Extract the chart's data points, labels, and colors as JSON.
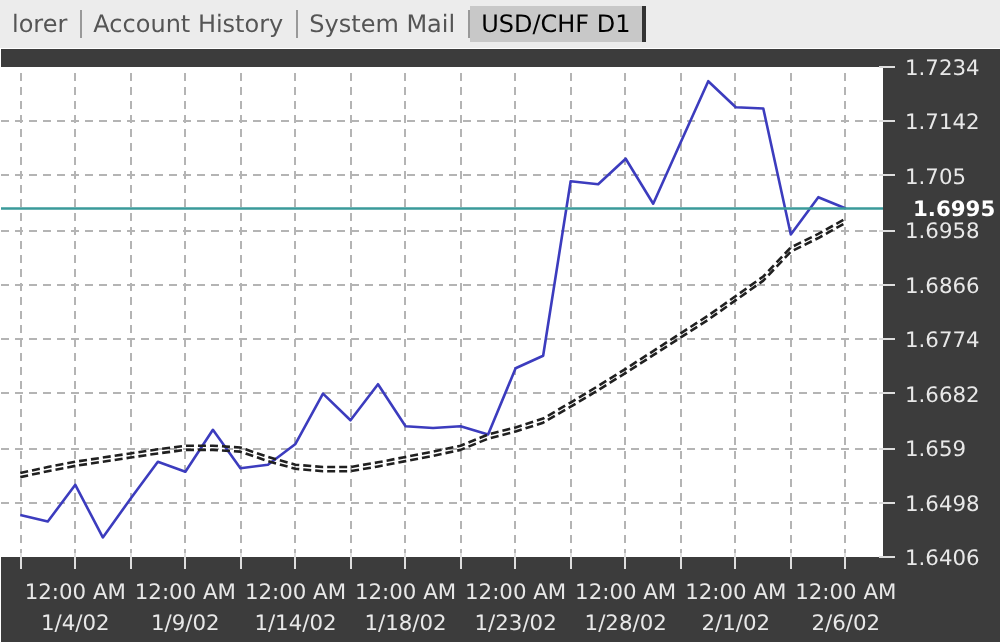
{
  "chart_data": {
    "type": "line",
    "title": "USD/CHF D1",
    "annotations": [
      "lorer",
      "Account History",
      "System Mail"
    ],
    "categories": [
      null,
      null,
      "12:00 AM\n1/4/02",
      null,
      null,
      null,
      "12:00 AM\n1/9/02",
      null,
      null,
      null,
      "12:00 AM\n1/14/02",
      null,
      null,
      null,
      "12:00 AM\n1/18/02",
      null,
      null,
      null,
      "12:00 AM\n1/23/02",
      null,
      null,
      null,
      "12:00 AM\n1/28/02",
      null,
      null,
      null,
      "12:00 AM\n2/1/02",
      null,
      null,
      null,
      "12:00 AM\n2/6/02"
    ],
    "ylim": [
      1.6406,
      1.7234
    ],
    "yticks": [
      1.6406,
      1.6498,
      1.659,
      1.6682,
      1.6774,
      1.6866,
      1.6958,
      1.705,
      1.7142,
      1.7234
    ],
    "grid": true,
    "ref_lines": [
      {
        "axis": "y",
        "value": 1.6995,
        "label": "1.6995",
        "color": "#3a9a9a"
      }
    ],
    "series": [
      {
        "color": "#3c3cbe",
        "line_style": "solid",
        "values": [
          1.6477,
          1.6466,
          1.6528,
          1.6439,
          1.6504,
          1.6567,
          1.655,
          1.6621,
          1.6556,
          1.6562,
          1.6597,
          1.6682,
          1.6637,
          1.6698,
          1.6627,
          1.6624,
          1.6627,
          1.6613,
          1.6725,
          1.6746,
          1.7041,
          1.7036,
          1.7079,
          1.7003,
          1.7107,
          1.721,
          1.7166,
          1.7164,
          1.6951,
          1.7014,
          1.6995
        ]
      },
      {
        "color": "#202020",
        "line_style": "dashed",
        "values": [
          1.6548,
          1.6558,
          1.6567,
          1.6574,
          1.6581,
          1.6588,
          1.6594,
          1.6594,
          1.6591,
          1.6575,
          1.6562,
          1.6558,
          1.6558,
          1.6566,
          1.6575,
          1.6584,
          1.6594,
          1.6613,
          1.6625,
          1.664,
          1.6667,
          1.6695,
          1.6724,
          1.6754,
          1.6784,
          1.6814,
          1.6847,
          1.688,
          1.6929,
          1.6952,
          1.6978
        ]
      },
      {
        "color": "#202020",
        "line_style": "dashed",
        "values": [
          1.6541,
          1.6551,
          1.656,
          1.6567,
          1.6574,
          1.6581,
          1.6587,
          1.6587,
          1.6584,
          1.6568,
          1.6555,
          1.6551,
          1.6551,
          1.6559,
          1.6568,
          1.6577,
          1.6587,
          1.6606,
          1.6618,
          1.6633,
          1.666,
          1.6688,
          1.6717,
          1.6747,
          1.6777,
          1.6807,
          1.684,
          1.6873,
          1.6922,
          1.6945,
          1.6971
        ]
      }
    ]
  }
}
